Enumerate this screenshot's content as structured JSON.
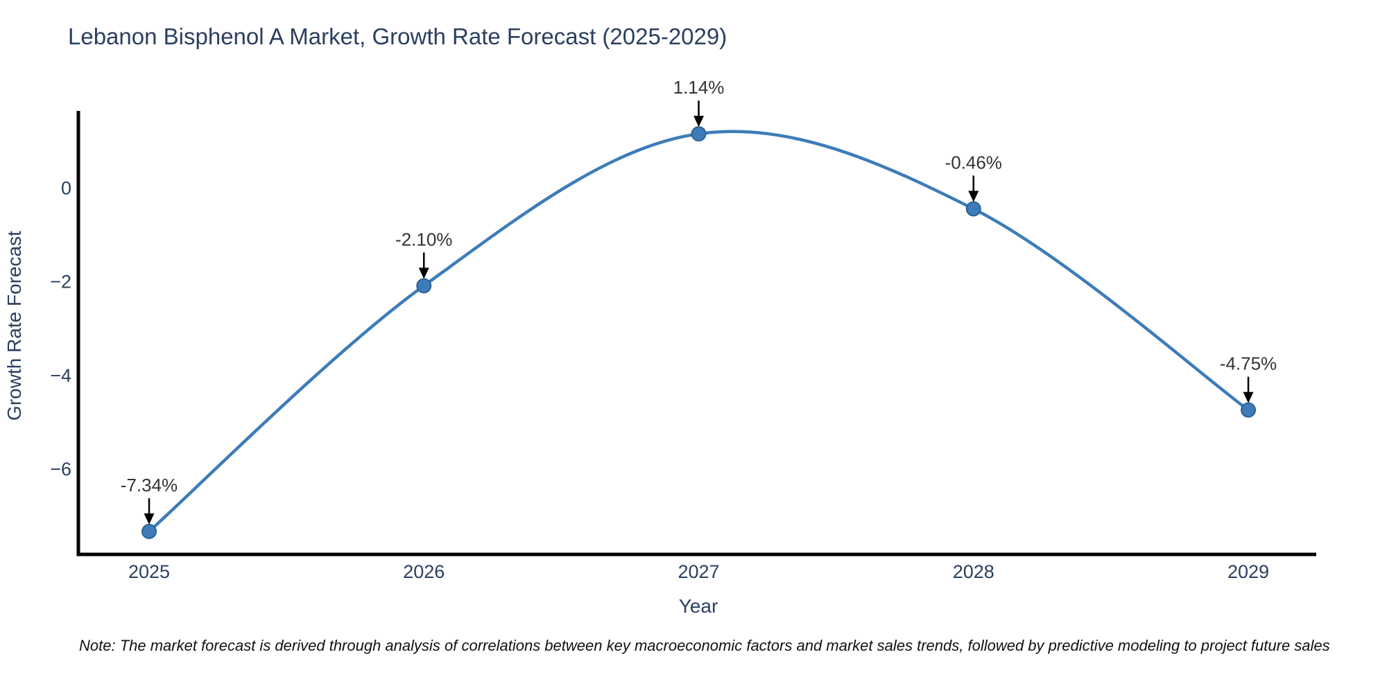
{
  "note": "Note: The market forecast is derived through analysis of correlations between key macroeconomic factors and market sales trends, followed by predictive modeling to project future sales",
  "chart_data": {
    "type": "line",
    "title": "Lebanon Bisphenol A Market, Growth Rate Forecast (2025-2029)",
    "xlabel": "Year",
    "ylabel": "Growth Rate Forecast",
    "x": [
      "2025",
      "2026",
      "2027",
      "2028",
      "2029"
    ],
    "series": [
      {
        "name": "Growth Rate Forecast",
        "values": [
          -7.34,
          -2.1,
          1.14,
          -0.46,
          -4.75
        ]
      }
    ],
    "point_labels": [
      "-7.34%",
      "-2.10%",
      "1.14%",
      "-0.46%",
      "-4.75%"
    ],
    "yticks": [
      0,
      -2,
      -4,
      -6
    ],
    "ytick_labels": [
      "0",
      "−2",
      "−4",
      "−6"
    ],
    "ylim": [
      -7.83,
      1.63
    ],
    "grid": false,
    "legend_position": "none",
    "line_shape": "spline",
    "annotation_arrow_direction": "down",
    "colors": {
      "line": "#3d7cb8",
      "marker": "#3d7cb8",
      "marker_edge": "#2b6294",
      "axis": "#000000",
      "tick_text": "#2a3f5f",
      "title_text": "#2a3f5f",
      "annotation_text": "#333333",
      "arrow": "#000000",
      "note_text": "#111111",
      "background": "#ffffff"
    }
  }
}
